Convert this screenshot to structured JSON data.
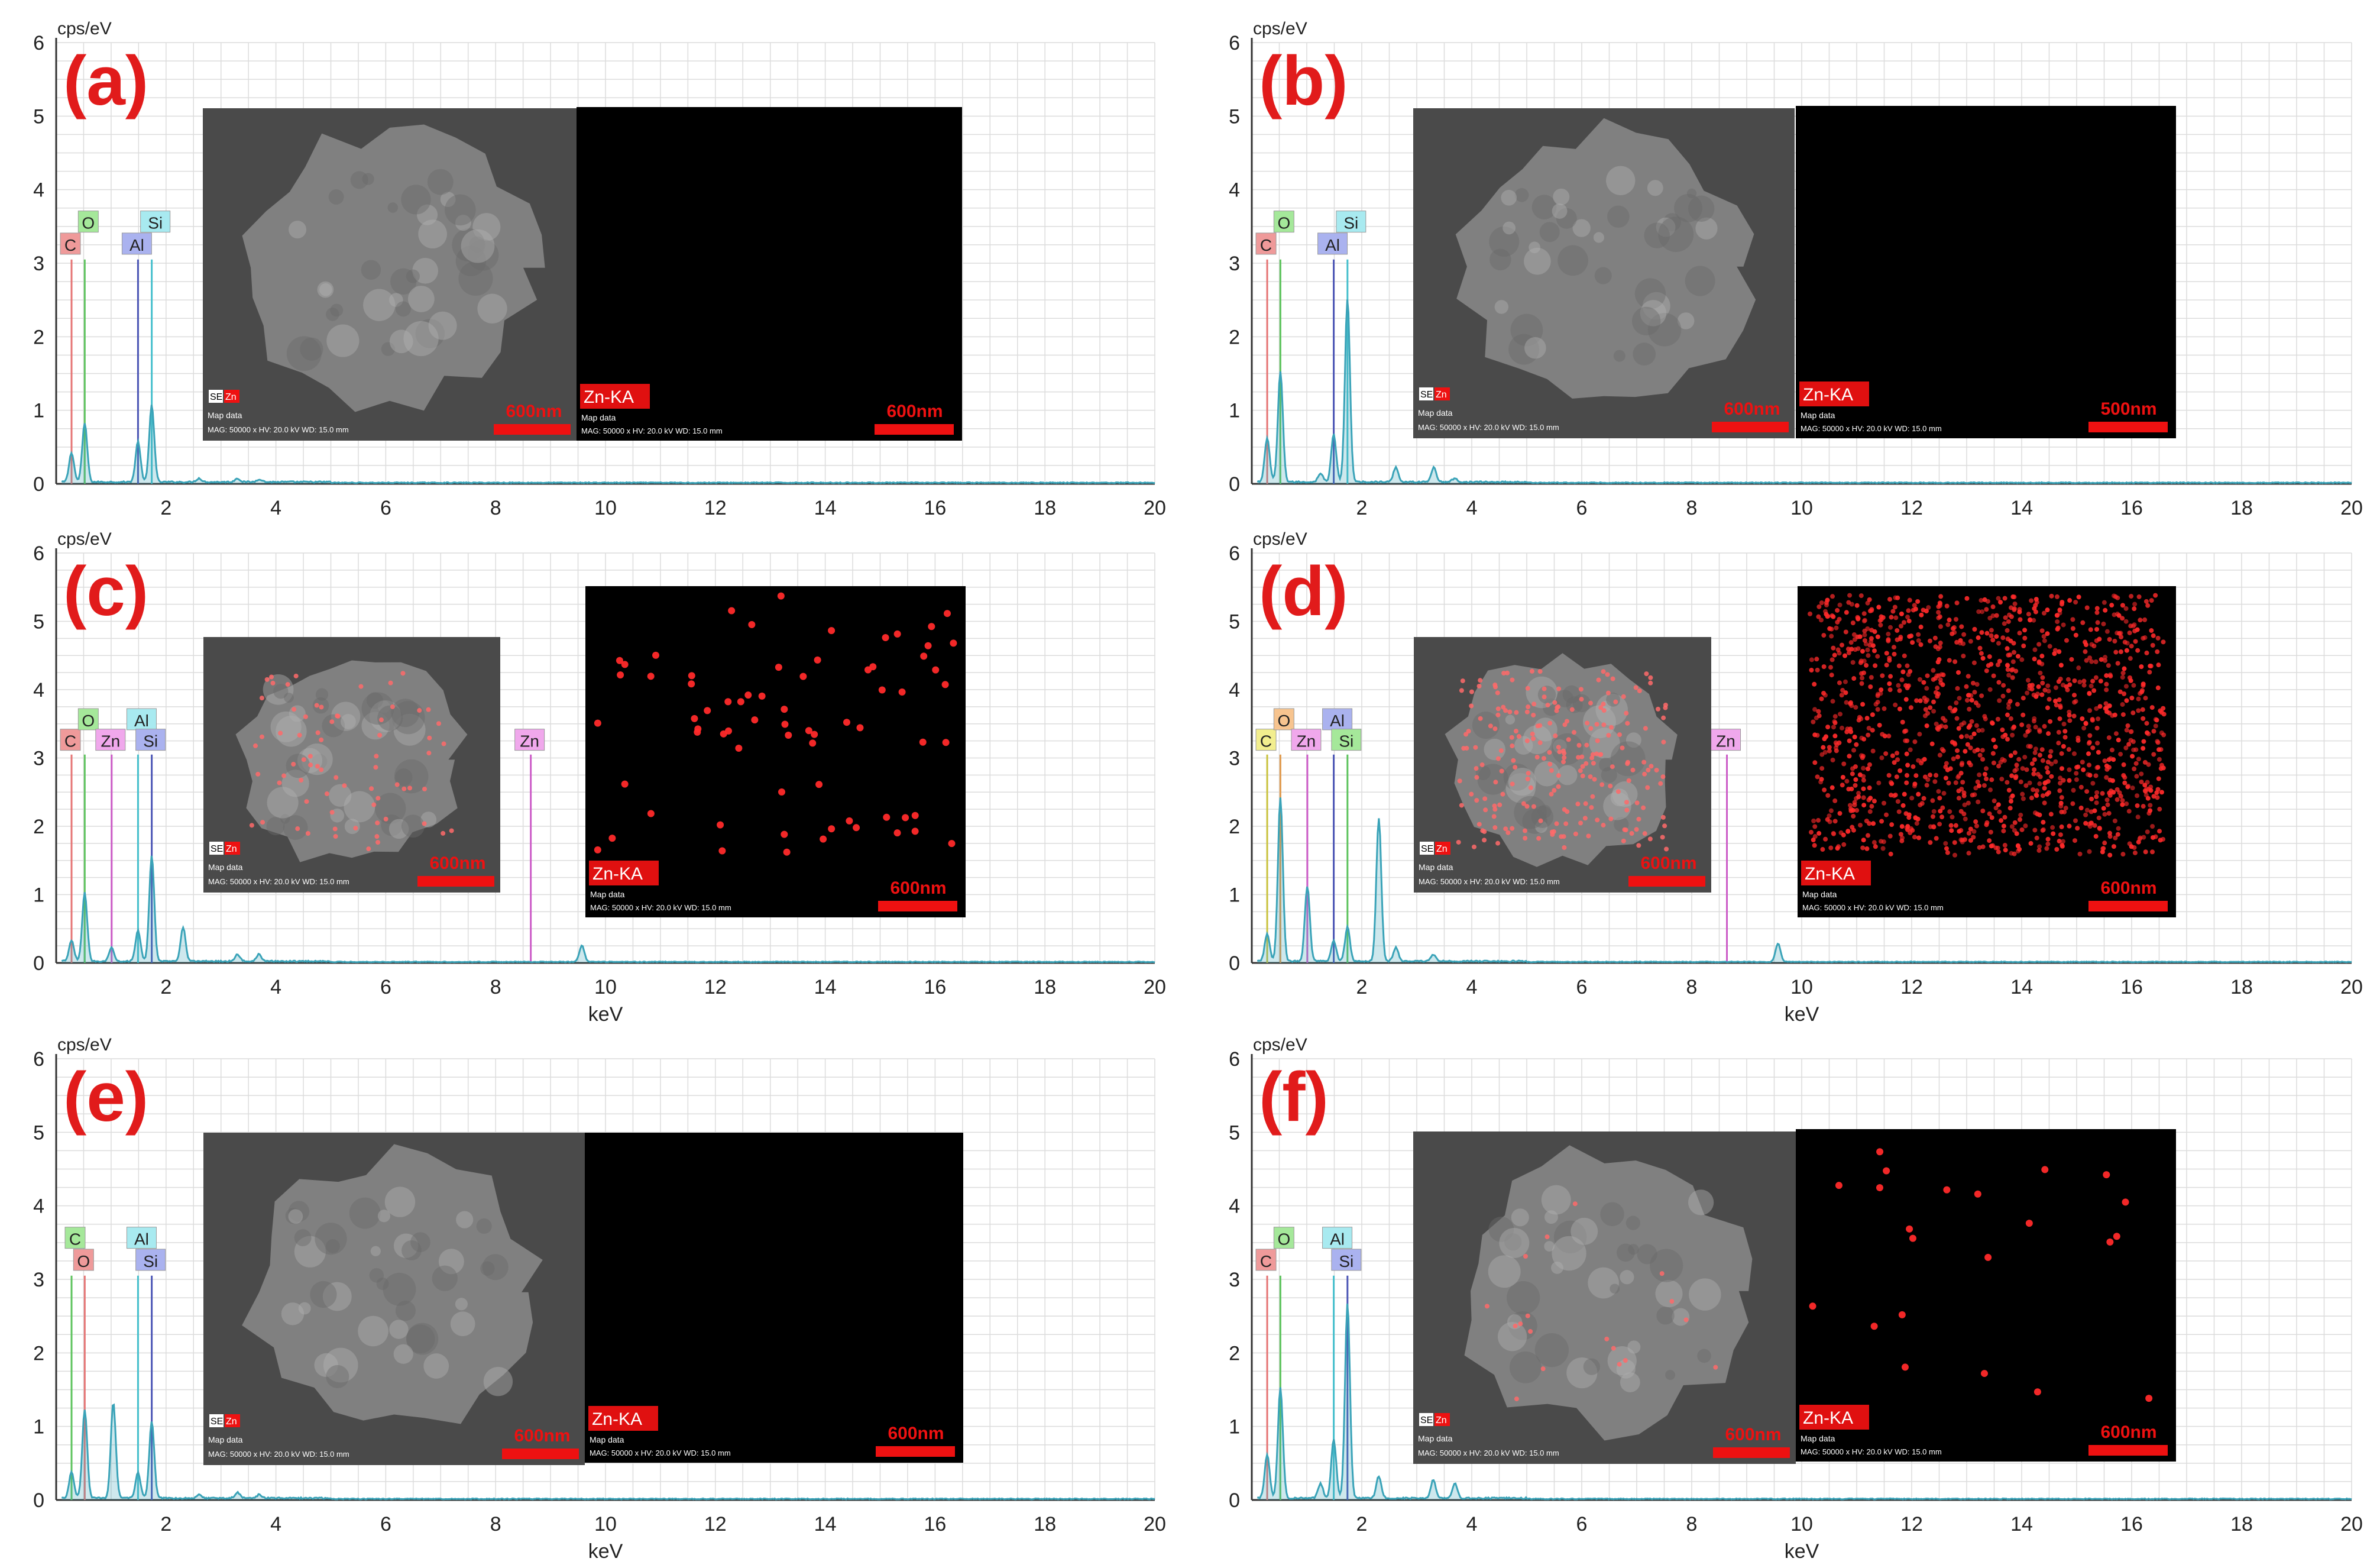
{
  "figure": {
    "panels": [
      {
        "letter": "(a)",
        "y_unit": "cps/eV",
        "x_label": "",
        "sem_insert": {
          "badge": "SE",
          "tag": "Zn",
          "text1": "Map data",
          "text2": "MAG: 50000 x  HV: 20.0 kV  WD: 15.0 mm",
          "scale": "600nm"
        },
        "map_insert": {
          "label": "Zn-KA",
          "text1": "Map data",
          "text2": "MAG: 50000 x  HV: 20.0 kV  WD: 15.0 mm",
          "scale": "600nm",
          "dot_density": "none"
        }
      },
      {
        "letter": "(b)",
        "y_unit": "cps/eV",
        "x_label": "",
        "sem_insert": {
          "badge": "SE",
          "tag": "Zn",
          "text1": "Map data",
          "text2": "MAG: 50000 x  HV: 20.0 kV  WD: 15.0 mm",
          "scale": "600nm"
        },
        "map_insert": {
          "label": "Zn-KA",
          "text1": "Map data",
          "text2": "MAG: 50000 x  HV: 20.0 kV  WD: 15.0 mm",
          "scale": "500nm",
          "dot_density": "none"
        }
      },
      {
        "letter": "(c)",
        "y_unit": "cps/eV",
        "x_label": "keV",
        "sem_insert": {
          "badge": "SE",
          "tag": "Zn",
          "text1": "Map data",
          "text2": "MAG: 50000 x  HV: 20.0 kV  WD: 15.0 mm",
          "scale": "600nm"
        },
        "map_insert": {
          "label": "Zn-KA",
          "text1": "Map data",
          "text2": "MAG: 50000 x  HV: 20.0 kV  WD: 15.0 mm",
          "scale": "600nm",
          "dot_density": "sparse"
        }
      },
      {
        "letter": "(d)",
        "y_unit": "cps/eV",
        "x_label": "keV",
        "sem_insert": {
          "badge": "SE",
          "tag": "Zn",
          "text1": "Map data",
          "text2": "MAG: 50000 x  HV: 20.0 kV  WD: 15.0 mm",
          "scale": "600nm"
        },
        "map_insert": {
          "label": "Zn-KA",
          "text1": "Map data",
          "text2": "MAG: 50000 x  HV: 20.0 kV  WD: 15.0 mm",
          "scale": "600nm",
          "dot_density": "dense"
        }
      },
      {
        "letter": "(e)",
        "y_unit": "cps/eV",
        "x_label": "keV",
        "sem_insert": {
          "badge": "SE",
          "tag": "Zn",
          "text1": "Map data",
          "text2": "MAG: 50000 x  HV: 20.0 kV  WD: 15.0 mm",
          "scale": "600nm"
        },
        "map_insert": {
          "label": "Zn-KA",
          "text1": "Map data",
          "text2": "MAG: 50000 x  HV: 20.0 kV  WD: 15.0 mm",
          "scale": "600nm",
          "dot_density": "none"
        }
      },
      {
        "letter": "(f)",
        "y_unit": "cps/eV",
        "x_label": "keV",
        "sem_insert": {
          "badge": "SE",
          "tag": "Zn",
          "text1": "Map data",
          "text2": "MAG: 50000 x  HV: 20.0 kV  WD: 15.0 mm",
          "scale": "600nm"
        },
        "map_insert": {
          "label": "Zn-KA",
          "text1": "Map data",
          "text2": "MAG: 50000 x  HV: 20.0 kV  WD: 15.0 mm",
          "scale": "600nm",
          "dot_density": "very_sparse"
        }
      }
    ]
  },
  "chart_data": [
    {
      "type": "line",
      "panel": "(a)",
      "ylabel": "cps/eV",
      "xlabel": "",
      "xlim": [
        0,
        20
      ],
      "ylim": [
        0,
        6
      ],
      "xticks": [
        2,
        4,
        6,
        8,
        10,
        12,
        14,
        16,
        18,
        20
      ],
      "yticks": [
        0,
        1,
        2,
        3,
        4,
        5,
        6
      ],
      "grid": true,
      "peaks": [
        {
          "x": 0.28,
          "y": 0.4
        },
        {
          "x": 0.52,
          "y": 0.8
        },
        {
          "x": 1.49,
          "y": 0.55
        },
        {
          "x": 1.74,
          "y": 1.05
        },
        {
          "x": 2.6,
          "y": 0.05
        },
        {
          "x": 3.3,
          "y": 0.05
        },
        {
          "x": 3.7,
          "y": 0.04
        }
      ],
      "element_lines": [
        {
          "element": "C",
          "x": 0.28,
          "color": "#ef9a9a",
          "line": "#e57373",
          "row": 2
        },
        {
          "element": "O",
          "x": 0.52,
          "color": "#a5e89a",
          "line": "#5cc35c",
          "row": 1
        },
        {
          "element": "Al",
          "x": 1.49,
          "color": "#aab2ef",
          "line": "#4b55b5",
          "row": 2
        },
        {
          "element": "Si",
          "x": 1.74,
          "color": "#a8eaf0",
          "line": "#45bfcc",
          "row": 1
        }
      ]
    },
    {
      "type": "line",
      "panel": "(b)",
      "ylabel": "cps/eV",
      "xlabel": "",
      "xlim": [
        0,
        20
      ],
      "ylim": [
        0,
        6
      ],
      "xticks": [
        2,
        4,
        6,
        8,
        10,
        12,
        14,
        16,
        18,
        20
      ],
      "yticks": [
        0,
        1,
        2,
        3,
        4,
        5,
        6
      ],
      "grid": true,
      "peaks": [
        {
          "x": 0.28,
          "y": 0.6
        },
        {
          "x": 0.52,
          "y": 1.5
        },
        {
          "x": 1.25,
          "y": 0.12
        },
        {
          "x": 1.49,
          "y": 0.65
        },
        {
          "x": 1.74,
          "y": 2.5
        },
        {
          "x": 2.62,
          "y": 0.2
        },
        {
          "x": 3.31,
          "y": 0.2
        },
        {
          "x": 3.69,
          "y": 0.05
        }
      ],
      "element_lines": [
        {
          "element": "C",
          "x": 0.28,
          "color": "#ef9a9a",
          "line": "#e57373",
          "row": 2
        },
        {
          "element": "O",
          "x": 0.52,
          "color": "#a5e89a",
          "line": "#5cc35c",
          "row": 1
        },
        {
          "element": "Al",
          "x": 1.49,
          "color": "#aab2ef",
          "line": "#4b55b5",
          "row": 2
        },
        {
          "element": "Si",
          "x": 1.74,
          "color": "#a8eaf0",
          "line": "#45bfcc",
          "row": 1
        }
      ]
    },
    {
      "type": "line",
      "panel": "(c)",
      "ylabel": "cps/eV",
      "xlabel": "keV",
      "xlim": [
        0,
        20
      ],
      "ylim": [
        0,
        6
      ],
      "xticks": [
        2,
        4,
        6,
        8,
        10,
        12,
        14,
        16,
        18,
        20
      ],
      "yticks": [
        0,
        1,
        2,
        3,
        4,
        5,
        6
      ],
      "grid": true,
      "peaks": [
        {
          "x": 0.28,
          "y": 0.3
        },
        {
          "x": 0.52,
          "y": 1.0
        },
        {
          "x": 1.01,
          "y": 0.2
        },
        {
          "x": 1.49,
          "y": 0.45
        },
        {
          "x": 1.74,
          "y": 1.55
        },
        {
          "x": 2.31,
          "y": 0.5
        },
        {
          "x": 3.3,
          "y": 0.1
        },
        {
          "x": 3.69,
          "y": 0.1
        },
        {
          "x": 9.57,
          "y": 0.4
        }
      ],
      "element_lines": [
        {
          "element": "C",
          "x": 0.28,
          "color": "#ef9a9a",
          "line": "#e57373",
          "row": 2
        },
        {
          "element": "O",
          "x": 0.52,
          "color": "#a5e89a",
          "line": "#5cc35c",
          "row": 1
        },
        {
          "element": "Zn",
          "x": 1.01,
          "color": "#f0a8ec",
          "line": "#cc5bc7",
          "row": 2
        },
        {
          "element": "Al",
          "x": 1.49,
          "color": "#a8eaf0",
          "line": "#45bfcc",
          "row": 1
        },
        {
          "element": "Si",
          "x": 1.74,
          "color": "#aab2ef",
          "line": "#4b55b5",
          "row": 2
        },
        {
          "element": "Zn",
          "x": 8.64,
          "color": "#f0a8ec",
          "line": "#cc5bc7",
          "row": 2
        }
      ]
    },
    {
      "type": "line",
      "panel": "(d)",
      "ylabel": "cps/eV",
      "xlabel": "keV",
      "xlim": [
        0,
        20
      ],
      "ylim": [
        0,
        6
      ],
      "xticks": [
        2,
        4,
        6,
        8,
        10,
        12,
        14,
        16,
        18,
        20
      ],
      "yticks": [
        0,
        1,
        2,
        3,
        4,
        5,
        6
      ],
      "grid": true,
      "peaks": [
        {
          "x": 0.28,
          "y": 0.4
        },
        {
          "x": 0.52,
          "y": 2.4
        },
        {
          "x": 1.01,
          "y": 1.1
        },
        {
          "x": 1.49,
          "y": 0.3
        },
        {
          "x": 1.74,
          "y": 0.5
        },
        {
          "x": 2.31,
          "y": 2.1
        },
        {
          "x": 2.62,
          "y": 0.2
        },
        {
          "x": 3.3,
          "y": 0.1
        },
        {
          "x": 9.57,
          "y": 0.45
        }
      ],
      "element_lines": [
        {
          "element": "C",
          "x": 0.28,
          "color": "#f2ee8e",
          "line": "#c9c23d",
          "row": 2
        },
        {
          "element": "O",
          "x": 0.52,
          "color": "#f7c48f",
          "line": "#e09a4d",
          "row": 1
        },
        {
          "element": "Zn",
          "x": 1.01,
          "color": "#f0a8ec",
          "line": "#cc5bc7",
          "row": 2
        },
        {
          "element": "Al",
          "x": 1.49,
          "color": "#aab2ef",
          "line": "#4b55b5",
          "row": 1
        },
        {
          "element": "Si",
          "x": 1.74,
          "color": "#a5e89a",
          "line": "#5cc35c",
          "row": 2
        },
        {
          "element": "Zn",
          "x": 8.64,
          "color": "#f0a8ec",
          "line": "#cc5bc7",
          "row": 2
        }
      ]
    },
    {
      "type": "line",
      "panel": "(e)",
      "ylabel": "cps/eV",
      "xlabel": "keV",
      "xlim": [
        0,
        20
      ],
      "ylim": [
        0,
        6
      ],
      "xticks": [
        2,
        4,
        6,
        8,
        10,
        12,
        14,
        16,
        18,
        20
      ],
      "yticks": [
        0,
        1,
        2,
        3,
        4,
        5,
        6
      ],
      "grid": true,
      "peaks": [
        {
          "x": 0.28,
          "y": 0.35
        },
        {
          "x": 0.52,
          "y": 1.2
        },
        {
          "x": 1.04,
          "y": 1.3
        },
        {
          "x": 1.49,
          "y": 0.35
        },
        {
          "x": 1.74,
          "y": 1.05
        },
        {
          "x": 2.6,
          "y": 0.05
        },
        {
          "x": 3.3,
          "y": 0.08
        },
        {
          "x": 3.7,
          "y": 0.05
        }
      ],
      "element_lines": [
        {
          "element": "C",
          "x": 0.28,
          "color": "#a5e89a",
          "line": "#5cc35c",
          "row": 1
        },
        {
          "element": "O",
          "x": 0.52,
          "color": "#ef9a9a",
          "line": "#e57373",
          "row": 2
        },
        {
          "element": "Al",
          "x": 1.49,
          "color": "#a8eaf0",
          "line": "#45bfcc",
          "row": 1
        },
        {
          "element": "Si",
          "x": 1.74,
          "color": "#aab2ef",
          "line": "#4b55b5",
          "row": 2
        }
      ]
    },
    {
      "type": "line",
      "panel": "(f)",
      "ylabel": "cps/eV",
      "xlabel": "keV",
      "xlim": [
        0,
        20
      ],
      "ylim": [
        0,
        6
      ],
      "xticks": [
        2,
        4,
        6,
        8,
        10,
        12,
        14,
        16,
        18,
        20
      ],
      "yticks": [
        0,
        1,
        2,
        3,
        4,
        5,
        6
      ],
      "grid": true,
      "peaks": [
        {
          "x": 0.28,
          "y": 0.6
        },
        {
          "x": 0.52,
          "y": 1.5
        },
        {
          "x": 1.25,
          "y": 0.2
        },
        {
          "x": 1.49,
          "y": 0.8
        },
        {
          "x": 1.74,
          "y": 2.65
        },
        {
          "x": 2.31,
          "y": 0.3
        },
        {
          "x": 3.3,
          "y": 0.25
        },
        {
          "x": 3.69,
          "y": 0.2
        }
      ],
      "element_lines": [
        {
          "element": "C",
          "x": 0.28,
          "color": "#ef9a9a",
          "line": "#e57373",
          "row": 2
        },
        {
          "element": "O",
          "x": 0.52,
          "color": "#a5e89a",
          "line": "#5cc35c",
          "row": 1
        },
        {
          "element": "Al",
          "x": 1.49,
          "color": "#a8eaf0",
          "line": "#45bfcc",
          "row": 1
        },
        {
          "element": "Si",
          "x": 1.74,
          "color": "#aab2ef",
          "line": "#4b55b5",
          "row": 2
        }
      ]
    }
  ],
  "colors": {
    "panel_letter": "#e11b1b",
    "spectrum": "#3aa3b8",
    "axis": "#333333",
    "grid": "#dcdcdc",
    "scalebar": "#ee1111",
    "zn_dot": "#ff2a2a"
  }
}
